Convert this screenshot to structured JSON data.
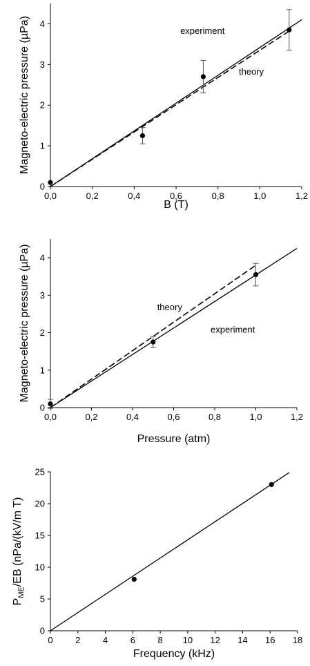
{
  "chart_data": [
    {
      "type": "scatter",
      "xlabel": "B (T)",
      "ylabel": "Magneto-electric pressure (µPa)",
      "xlim": [
        0,
        1.2
      ],
      "ylim": [
        0,
        4.5
      ],
      "xticks": [
        "0,0",
        "0,2",
        "0,4",
        "0,6",
        "0,8",
        "1,0",
        "1,2"
      ],
      "yticks": [
        "0",
        "1",
        "2",
        "3",
        "4"
      ],
      "points": [
        {
          "x": 0.0,
          "y": 0.1,
          "err": null
        },
        {
          "x": 0.44,
          "y": 1.25,
          "err": 0.2
        },
        {
          "x": 1.14,
          "y": 3.85,
          "err": 0.5
        },
        {
          "x": 0.73,
          "y": 2.7,
          "err": 0.4
        }
      ],
      "lines": [
        {
          "name": "experiment",
          "style": "solid",
          "x": [
            0.0,
            1.2
          ],
          "y": [
            0.0,
            4.1
          ]
        },
        {
          "name": "theory",
          "style": "dashed",
          "x": [
            0.0,
            1.14
          ],
          "y": [
            0.0,
            3.82
          ]
        }
      ],
      "annotations": [
        {
          "text": "experiment",
          "x": 0.62,
          "y": 3.75
        },
        {
          "text": "theory",
          "x": 0.9,
          "y": 2.75
        }
      ]
    },
    {
      "type": "scatter",
      "xlabel": "Pressure (atm)",
      "ylabel": "Magneto-electric pressure (µPa)",
      "xlim": [
        0,
        1.2
      ],
      "ylim": [
        0,
        4.5
      ],
      "xticks": [
        "0,0",
        "0,2",
        "0,4",
        "0,6",
        "0,8",
        "1,0",
        "1,2"
      ],
      "yticks": [
        "0",
        "1",
        "2",
        "3",
        "4"
      ],
      "points": [
        {
          "x": 0.0,
          "y": 0.1,
          "err": 0.12
        },
        {
          "x": 0.5,
          "y": 1.75,
          "err": 0.15
        },
        {
          "x": 1.0,
          "y": 3.55,
          "err": 0.3
        }
      ],
      "lines": [
        {
          "name": "experiment",
          "style": "solid",
          "x": [
            0.0,
            1.2
          ],
          "y": [
            0.0,
            4.25
          ]
        },
        {
          "name": "theory",
          "style": "dashed",
          "x": [
            0.0,
            1.0
          ],
          "y": [
            0.0,
            3.8
          ]
        }
      ],
      "annotations": [
        {
          "text": "theory",
          "x": 0.52,
          "y": 2.6
        },
        {
          "text": "experiment",
          "x": 0.78,
          "y": 2.0
        }
      ]
    },
    {
      "type": "scatter",
      "xlabel": "Frequency (kHz)",
      "ylabel": "P_ME/EB (nPa/(kV/m T)",
      "ylabel_main": "P",
      "ylabel_sub": "ME",
      "ylabel_rest": "/EB (nPa/(kV/m T)",
      "xlim": [
        0,
        18
      ],
      "ylim": [
        0,
        25
      ],
      "xticks": [
        "0",
        "2",
        "4",
        "6",
        "8",
        "10",
        "12",
        "14",
        "16",
        "18"
      ],
      "yticks": [
        "0",
        "5",
        "10",
        "15",
        "20",
        "25"
      ],
      "points": [
        {
          "x": 6.1,
          "y": 8.1,
          "err": null
        },
        {
          "x": 16.1,
          "y": 23.0,
          "err": null
        }
      ],
      "lines": [
        {
          "name": "fit",
          "style": "solid",
          "x": [
            0.0,
            17.4
          ],
          "y": [
            0.0,
            24.9
          ]
        }
      ],
      "annotations": []
    }
  ]
}
